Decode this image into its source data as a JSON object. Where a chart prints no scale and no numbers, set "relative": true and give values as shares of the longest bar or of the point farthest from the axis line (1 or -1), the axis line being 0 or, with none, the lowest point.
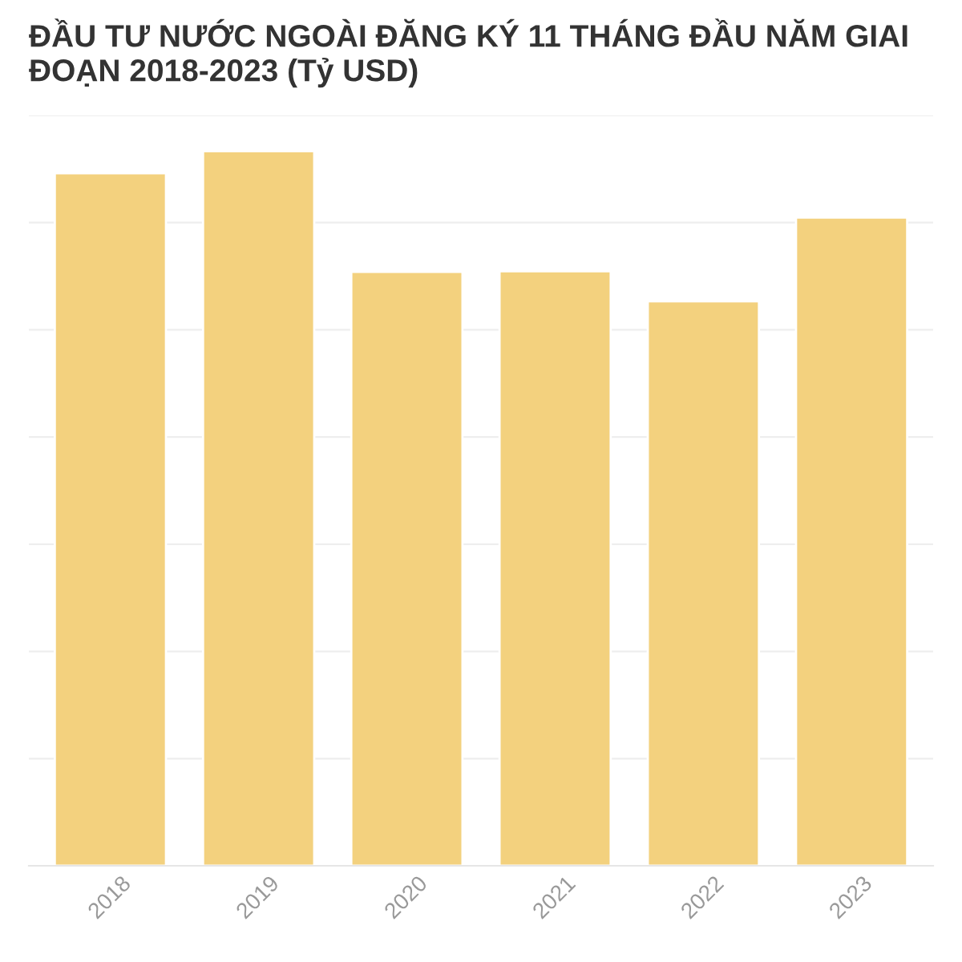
{
  "chart_data": {
    "type": "bar",
    "title": "ĐẦU TƯ NƯỚC NGOÀI ĐĂNG KÝ 11 THÁNG ĐẦU NĂM GIAI ĐOẠN 2018-2023 (Tỷ USD)",
    "categories": [
      "2018",
      "2019",
      "2020",
      "2021",
      "2022",
      "2023"
    ],
    "values": [
      0.969,
      1,
      0.831,
      0.832,
      0.79,
      0.907
    ],
    "color": "#f3d17e",
    "relative": true,
    "grid": "y"
  }
}
